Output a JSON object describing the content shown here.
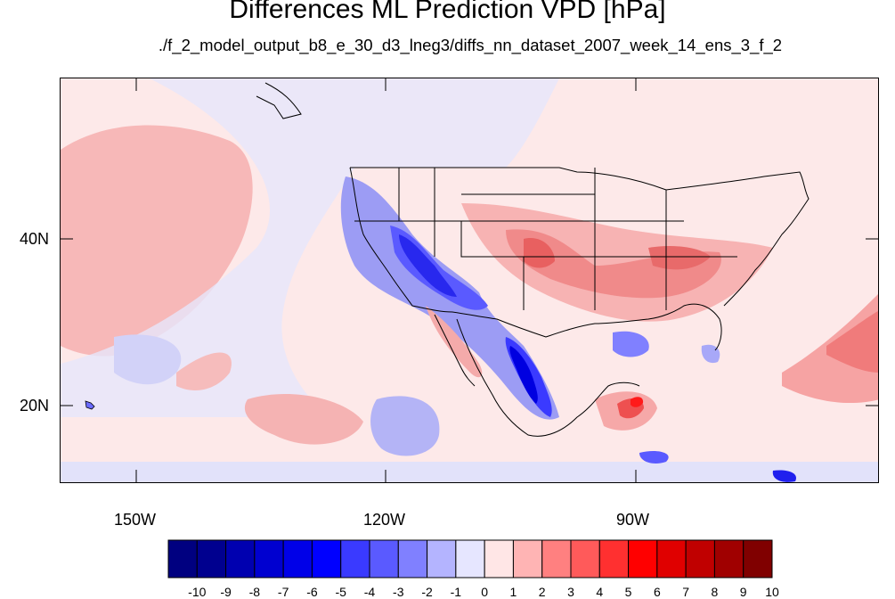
{
  "title": "Differences ML Prediction VPD [hPa]",
  "subtitle": "./f_2_model_output_b8_e_30_d3_lneg3/diffs_nn_dataset_2007_week_14_ens_3_f_2",
  "map": {
    "lon_range": [
      -160,
      -62
    ],
    "lat_range": [
      11,
      60
    ],
    "lat_ticks": [
      "40N",
      "20N"
    ],
    "lon_ticks": [
      "150W",
      "120W",
      "90W"
    ]
  },
  "colorbar": {
    "labels": [
      "-10",
      "-9",
      "-8",
      "-7",
      "-6",
      "-5",
      "-4",
      "-3",
      "-2",
      "-1",
      "0",
      "1",
      "2",
      "3",
      "4",
      "5",
      "6",
      "7",
      "8",
      "9",
      "10"
    ],
    "colors": [
      "#000080",
      "#00008f",
      "#0000b0",
      "#0000d0",
      "#0000e8",
      "#0000ff",
      "#3a3aff",
      "#5a5aff",
      "#8080ff",
      "#b4b4ff",
      "#e6e6ff",
      "#ffe6e6",
      "#ffb4b4",
      "#ff8080",
      "#ff5a5a",
      "#ff3030",
      "#ff0000",
      "#e00000",
      "#c00000",
      "#a00000",
      "#800000"
    ]
  }
}
